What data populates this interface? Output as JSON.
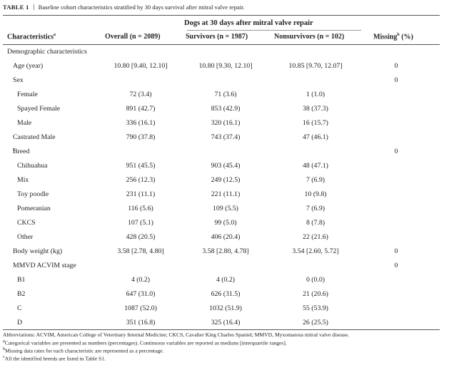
{
  "caption": {
    "label": "TABLE 1",
    "text": "Baseline cohort characteristics stratified by 30 days survival after mitral valve repair."
  },
  "header": {
    "group": "Dogs at 30 days after mitral valve repair",
    "col0": "Characteristics",
    "col0_sup": "a",
    "col1": "Overall (n = 2089)",
    "col2": "Survivors (n = 1987)",
    "col3": "Nonsurvivors (n = 102)",
    "col4": "Missing",
    "col4_sup": "b",
    "col4_suffix": " (%)"
  },
  "rows": [
    {
      "label": "Demographic characteristics",
      "overall": "",
      "survivors": "",
      "nonsurvivors": "",
      "missing": ""
    },
    {
      "label": "Age (year)",
      "overall": "10.80 [9.40, 12.10]",
      "survivors": "10.80 [9.30, 12.10]",
      "nonsurvivors": "10.85 [9.70, 12.07]",
      "missing": "0"
    },
    {
      "label": "Sex",
      "overall": "",
      "survivors": "",
      "nonsurvivors": "",
      "missing": "0"
    },
    {
      "label": "Female",
      "overall": "72 (3.4)",
      "survivors": "71 (3.6)",
      "nonsurvivors": "1 (1.0)",
      "missing": ""
    },
    {
      "label": "Spayed Female",
      "overall": "891 (42.7)",
      "survivors": "853 (42.9)",
      "nonsurvivors": "38 (37.3)",
      "missing": ""
    },
    {
      "label": "Male",
      "overall": "336 (16.1)",
      "survivors": "320 (16.1)",
      "nonsurvivors": "16 (15.7)",
      "missing": ""
    },
    {
      "label": "Castrated Male",
      "overall": "790 (37.8)",
      "survivors": "743 (37.4)",
      "nonsurvivors": "47 (46.1)",
      "missing": ""
    },
    {
      "label": "Breed",
      "label_sup": "c",
      "overall": "",
      "survivors": "",
      "nonsurvivors": "",
      "missing": "0"
    },
    {
      "label": "Chihuahua",
      "overall": "951 (45.5)",
      "survivors": "903 (45.4)",
      "nonsurvivors": "48 (47.1)",
      "missing": ""
    },
    {
      "label": "Mix",
      "overall": "256 (12.3)",
      "survivors": "249 (12.5)",
      "nonsurvivors": "7 (6.9)",
      "missing": ""
    },
    {
      "label": "Toy poodle",
      "overall": "231 (11.1)",
      "survivors": "221 (11.1)",
      "nonsurvivors": "10 (9.8)",
      "missing": ""
    },
    {
      "label": "Pomeranian",
      "overall": "116 (5.6)",
      "survivors": "109 (5.5)",
      "nonsurvivors": "7 (6.9)",
      "missing": ""
    },
    {
      "label": "CKCS",
      "overall": "107 (5.1)",
      "survivors": "99 (5.0)",
      "nonsurvivors": "8 (7.8)",
      "missing": ""
    },
    {
      "label": "Other",
      "overall": "428 (20.5)",
      "survivors": "406 (20.4)",
      "nonsurvivors": "22 (21.6)",
      "missing": ""
    },
    {
      "label": "Body weight (kg)",
      "overall": "3.58 [2.78, 4.80]",
      "survivors": "3.58 [2.80, 4.78]",
      "nonsurvivors": "3.54 [2.60, 5.72]",
      "missing": "0"
    },
    {
      "label": "MMVD ACVIM stage",
      "overall": "",
      "survivors": "",
      "nonsurvivors": "",
      "missing": "0"
    },
    {
      "label": "B1",
      "overall": "4 (0.2)",
      "survivors": "4 (0.2)",
      "nonsurvivors": "0 (0.0)",
      "missing": ""
    },
    {
      "label": "B2",
      "overall": "647 (31.0)",
      "survivors": "626 (31.5)",
      "nonsurvivors": "21 (20.6)",
      "missing": ""
    },
    {
      "label": "C",
      "overall": "1087 (52.0)",
      "survivors": "1032 (51.9)",
      "nonsurvivors": "55 (53.9)",
      "missing": ""
    },
    {
      "label": "D",
      "overall": "351 (16.8)",
      "survivors": "325 (16.4)",
      "nonsurvivors": "26 (25.5)",
      "missing": ""
    }
  ],
  "footnotes": {
    "abbrev": "Abbreviations: ACVIM, American College of Veterinary Internal Medicine; CKCS, Cavalier King Charles Spaniel; MMVD, Myxomatous mitral valve disease.",
    "a_sup": "a",
    "a": "Categorical variables are presented as numbers (percentages). Continuous variables are reported as medians [interquartile ranges].",
    "b_sup": "b",
    "b": "Missing data rates for each characteristic are represented as a percentage.",
    "c_sup": "c",
    "c": "All the identified breeds are listed in Table S1."
  }
}
